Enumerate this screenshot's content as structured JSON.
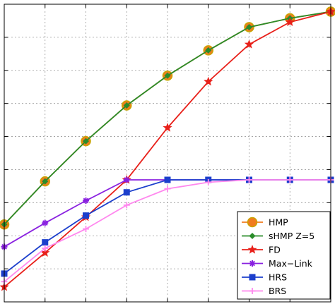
{
  "chart_data": {
    "type": "line",
    "title": "",
    "xlabel": "",
    "ylabel": "",
    "x": [
      0,
      1,
      2,
      3,
      4,
      5,
      6,
      7,
      8
    ],
    "xlim": [
      0,
      8
    ],
    "ylim": [
      0,
      1
    ],
    "grid": true,
    "legend_position": "bottom-right",
    "series": [
      {
        "name": "HMP",
        "color": "#f07b1e",
        "marker": "circle",
        "values": [
          0.26,
          0.405,
          0.54,
          0.66,
          0.76,
          0.845,
          0.923,
          0.953,
          0.975
        ]
      },
      {
        "name": "sHMP Z=5",
        "color": "#2a8c2a",
        "marker": "diamond",
        "values": [
          0.26,
          0.405,
          0.54,
          0.66,
          0.76,
          0.845,
          0.923,
          0.953,
          0.975
        ]
      },
      {
        "name": "FD",
        "color": "#e8201a",
        "marker": "star",
        "values": [
          0.05,
          0.165,
          0.285,
          0.41,
          0.585,
          0.74,
          0.865,
          0.94,
          0.975
        ]
      },
      {
        "name": "Max−Link",
        "color": "#8a22e0",
        "marker": "asterisk",
        "values": [
          0.185,
          0.265,
          0.34,
          0.41,
          0.41,
          0.41,
          0.41,
          0.41,
          0.41
        ]
      },
      {
        "name": "HRS",
        "color": "#1c3fcc",
        "marker": "square",
        "values": [
          0.095,
          0.2,
          0.29,
          0.368,
          0.41,
          0.41,
          0.41,
          0.41,
          0.41
        ]
      },
      {
        "name": "BRS",
        "color": "#ff88ee",
        "marker": "plus",
        "values": [
          0.068,
          0.18,
          0.245,
          0.325,
          0.38,
          0.402,
          0.41,
          0.41,
          0.41
        ]
      }
    ]
  }
}
